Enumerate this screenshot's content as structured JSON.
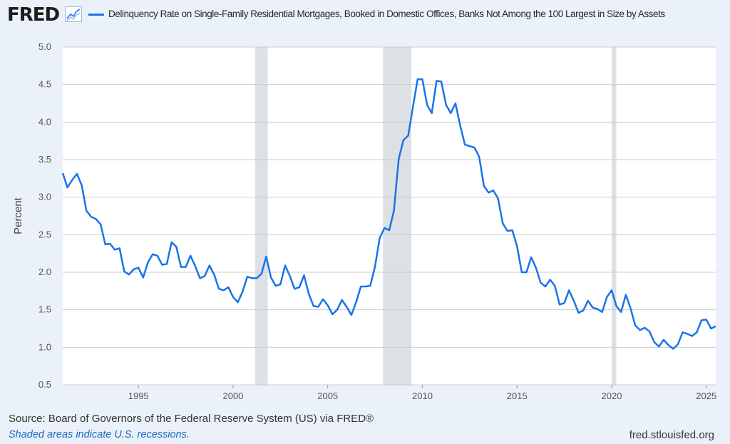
{
  "header": {
    "logo_text": "FRED",
    "logo_icon": "chart-line-icon"
  },
  "footer": {
    "source": "Source: Board of Governors of the Federal Reserve System (US) via FRED®",
    "note": "Shaded areas indicate U.S. recessions.",
    "url": "fred.stlouisfed.org"
  },
  "colors": {
    "series": "#1a73e8",
    "recession": "#dde1e6",
    "background": "#ebf1f9",
    "plot": "#ffffff"
  },
  "chart_data": {
    "type": "line",
    "legend_label": "Delinquency Rate on Single-Family Residential Mortgages, Booked in Domestic Offices, Banks Not Among the 100 Largest in Size by Assets",
    "ylabel": "Percent",
    "xlabel": "",
    "ylim": [
      0.5,
      5.0
    ],
    "xlim": [
      1991.0,
      2025.5
    ],
    "grid": true,
    "legend_position": "top",
    "y_ticks": [
      "0.5",
      "1.0",
      "1.5",
      "2.0",
      "2.5",
      "3.0",
      "3.5",
      "4.0",
      "4.5",
      "5.0"
    ],
    "x_ticks": [
      "1995",
      "2000",
      "2005",
      "2010",
      "2015",
      "2020",
      "2025"
    ],
    "recessions": [
      [
        2001.17,
        2001.83
      ],
      [
        2007.92,
        2009.42
      ],
      [
        2020.0,
        2020.25
      ]
    ],
    "series": [
      {
        "values": [
          [
            1991.0,
            3.32
          ],
          [
            1991.25,
            3.13
          ],
          [
            1991.5,
            3.23
          ],
          [
            1991.75,
            3.31
          ],
          [
            1992.0,
            3.16
          ],
          [
            1992.25,
            2.82
          ],
          [
            1992.5,
            2.74
          ],
          [
            1992.75,
            2.71
          ],
          [
            1993.0,
            2.64
          ],
          [
            1993.25,
            2.37
          ],
          [
            1993.5,
            2.38
          ],
          [
            1993.75,
            2.3
          ],
          [
            1994.0,
            2.32
          ],
          [
            1994.25,
            2.01
          ],
          [
            1994.5,
            1.97
          ],
          [
            1994.75,
            2.04
          ],
          [
            1995.0,
            2.06
          ],
          [
            1995.25,
            1.93
          ],
          [
            1995.5,
            2.13
          ],
          [
            1995.75,
            2.24
          ],
          [
            1996.0,
            2.22
          ],
          [
            1996.25,
            2.1
          ],
          [
            1996.5,
            2.11
          ],
          [
            1996.75,
            2.4
          ],
          [
            1997.0,
            2.34
          ],
          [
            1997.25,
            2.07
          ],
          [
            1997.5,
            2.07
          ],
          [
            1997.75,
            2.22
          ],
          [
            1998.0,
            2.08
          ],
          [
            1998.25,
            1.92
          ],
          [
            1998.5,
            1.95
          ],
          [
            1998.75,
            2.09
          ],
          [
            1999.0,
            1.97
          ],
          [
            1999.25,
            1.78
          ],
          [
            1999.5,
            1.76
          ],
          [
            1999.75,
            1.8
          ],
          [
            2000.0,
            1.67
          ],
          [
            2000.25,
            1.6
          ],
          [
            2000.5,
            1.74
          ],
          [
            2000.75,
            1.94
          ],
          [
            2001.0,
            1.92
          ],
          [
            2001.25,
            1.92
          ],
          [
            2001.5,
            1.98
          ],
          [
            2001.75,
            2.21
          ],
          [
            2002.0,
            1.93
          ],
          [
            2002.25,
            1.82
          ],
          [
            2002.5,
            1.84
          ],
          [
            2002.75,
            2.09
          ],
          [
            2003.0,
            1.95
          ],
          [
            2003.25,
            1.78
          ],
          [
            2003.5,
            1.8
          ],
          [
            2003.75,
            1.96
          ],
          [
            2004.0,
            1.71
          ],
          [
            2004.25,
            1.55
          ],
          [
            2004.5,
            1.54
          ],
          [
            2004.75,
            1.64
          ],
          [
            2005.0,
            1.56
          ],
          [
            2005.25,
            1.44
          ],
          [
            2005.5,
            1.5
          ],
          [
            2005.75,
            1.63
          ],
          [
            2006.0,
            1.54
          ],
          [
            2006.25,
            1.43
          ],
          [
            2006.5,
            1.6
          ],
          [
            2006.75,
            1.81
          ],
          [
            2007.0,
            1.81
          ],
          [
            2007.25,
            1.82
          ],
          [
            2007.5,
            2.08
          ],
          [
            2007.75,
            2.46
          ],
          [
            2008.0,
            2.59
          ],
          [
            2008.25,
            2.56
          ],
          [
            2008.5,
            2.82
          ],
          [
            2008.75,
            3.51
          ],
          [
            2009.0,
            3.76
          ],
          [
            2009.25,
            3.82
          ],
          [
            2009.5,
            4.2
          ],
          [
            2009.75,
            4.57
          ],
          [
            2010.0,
            4.57
          ],
          [
            2010.25,
            4.23
          ],
          [
            2010.5,
            4.12
          ],
          [
            2010.75,
            4.55
          ],
          [
            2011.0,
            4.54
          ],
          [
            2011.25,
            4.23
          ],
          [
            2011.5,
            4.12
          ],
          [
            2011.75,
            4.25
          ],
          [
            2012.0,
            3.95
          ],
          [
            2012.25,
            3.7
          ],
          [
            2012.5,
            3.68
          ],
          [
            2012.75,
            3.66
          ],
          [
            2013.0,
            3.54
          ],
          [
            2013.25,
            3.15
          ],
          [
            2013.5,
            3.06
          ],
          [
            2013.75,
            3.09
          ],
          [
            2014.0,
            2.98
          ],
          [
            2014.25,
            2.65
          ],
          [
            2014.5,
            2.55
          ],
          [
            2014.75,
            2.56
          ],
          [
            2015.0,
            2.35
          ],
          [
            2015.25,
            2.0
          ],
          [
            2015.5,
            2.0
          ],
          [
            2015.75,
            2.2
          ],
          [
            2016.0,
            2.06
          ],
          [
            2016.25,
            1.86
          ],
          [
            2016.5,
            1.81
          ],
          [
            2016.75,
            1.9
          ],
          [
            2017.0,
            1.82
          ],
          [
            2017.25,
            1.57
          ],
          [
            2017.5,
            1.59
          ],
          [
            2017.75,
            1.76
          ],
          [
            2018.0,
            1.62
          ],
          [
            2018.25,
            1.46
          ],
          [
            2018.5,
            1.49
          ],
          [
            2018.75,
            1.62
          ],
          [
            2019.0,
            1.53
          ],
          [
            2019.25,
            1.51
          ],
          [
            2019.5,
            1.47
          ],
          [
            2019.75,
            1.67
          ],
          [
            2020.0,
            1.76
          ],
          [
            2020.25,
            1.55
          ],
          [
            2020.5,
            1.47
          ],
          [
            2020.75,
            1.7
          ],
          [
            2021.0,
            1.52
          ],
          [
            2021.25,
            1.29
          ],
          [
            2021.5,
            1.23
          ],
          [
            2021.75,
            1.26
          ],
          [
            2022.0,
            1.21
          ],
          [
            2022.25,
            1.07
          ],
          [
            2022.5,
            1.01
          ],
          [
            2022.75,
            1.1
          ],
          [
            2023.0,
            1.03
          ],
          [
            2023.25,
            0.98
          ],
          [
            2023.5,
            1.04
          ],
          [
            2023.75,
            1.2
          ],
          [
            2024.0,
            1.18
          ],
          [
            2024.25,
            1.15
          ],
          [
            2024.5,
            1.2
          ],
          [
            2024.75,
            1.36
          ],
          [
            2025.0,
            1.37
          ],
          [
            2025.25,
            1.25
          ],
          [
            2025.5,
            1.28
          ]
        ]
      }
    ]
  }
}
